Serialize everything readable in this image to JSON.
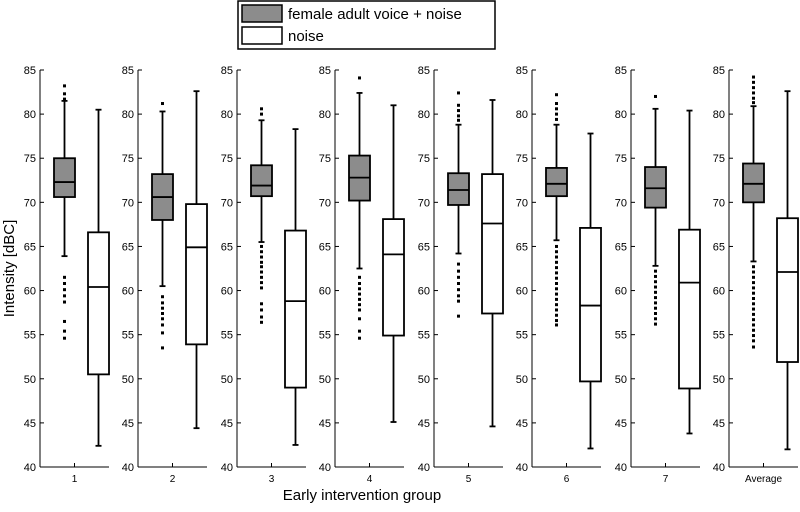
{
  "chart_data": {
    "type": "box",
    "ylabel": "Intensity [dBC]",
    "xlabel": "Early intervention group",
    "ylim": [
      40,
      85
    ],
    "yticks": [
      40,
      45,
      50,
      55,
      60,
      65,
      70,
      75,
      80,
      85
    ],
    "legend": {
      "placement": "top-center",
      "entries": [
        "female adult voice + noise",
        "noise"
      ]
    },
    "colors": {
      "female adult voice + noise": "#8c8c8c",
      "noise": "#ffffff",
      "line": "#000000"
    },
    "groups": [
      {
        "label": "1",
        "boxes": [
          {
            "series": "female adult voice + noise",
            "whisker_low": 63.9,
            "q1": 70.6,
            "median": 72.3,
            "q3": 75.0,
            "whisker_high": 81.5,
            "outliers": [
              83.2,
              82.3,
              81.7,
              61.5,
              60.8,
              60.1,
              59.4,
              58.7,
              56.5,
              55.4,
              54.6
            ]
          },
          {
            "series": "noise",
            "whisker_low": 42.4,
            "q1": 50.5,
            "median": 60.4,
            "q3": 66.6,
            "whisker_high": 80.5,
            "outliers": []
          }
        ]
      },
      {
        "label": "2",
        "boxes": [
          {
            "series": "female adult voice + noise",
            "whisker_low": 60.5,
            "q1": 68.0,
            "median": 70.6,
            "q3": 73.2,
            "whisker_high": 80.3,
            "outliers": [
              81.2,
              59.3,
              58.6,
              58.0,
              57.4,
              56.8,
              56.1,
              55.2,
              53.5
            ]
          },
          {
            "series": "noise",
            "whisker_low": 44.4,
            "q1": 53.9,
            "median": 64.9,
            "q3": 69.8,
            "whisker_high": 82.6,
            "outliers": []
          }
        ]
      },
      {
        "label": "3",
        "boxes": [
          {
            "series": "female adult voice + noise",
            "whisker_low": 65.5,
            "q1": 70.7,
            "median": 71.9,
            "q3": 74.2,
            "whisker_high": 79.3,
            "outliers": [
              80.6,
              80.0,
              65.0,
              64.4,
              63.8,
              63.2,
              62.7,
              62.1,
              61.5,
              60.9,
              60.3,
              58.5,
              57.8,
              57.0,
              56.4
            ]
          },
          {
            "series": "noise",
            "whisker_low": 42.5,
            "q1": 49.0,
            "median": 58.8,
            "q3": 66.8,
            "whisker_high": 78.3,
            "outliers": []
          }
        ]
      },
      {
        "label": "4",
        "boxes": [
          {
            "series": "female adult voice + noise",
            "whisker_low": 62.5,
            "q1": 70.2,
            "median": 72.8,
            "q3": 75.3,
            "whisker_high": 82.4,
            "outliers": [
              84.1,
              61.5,
              60.8,
              60.2,
              59.6,
              59.0,
              58.4,
              57.8,
              56.8,
              55.4,
              54.6
            ]
          },
          {
            "series": "noise",
            "whisker_low": 45.1,
            "q1": 54.9,
            "median": 64.1,
            "q3": 68.1,
            "whisker_high": 81.0,
            "outliers": []
          }
        ]
      },
      {
        "label": "5",
        "boxes": [
          {
            "series": "female adult voice + noise",
            "whisker_low": 64.2,
            "q1": 69.7,
            "median": 71.4,
            "q3": 73.3,
            "whisker_high": 78.8,
            "outliers": [
              82.4,
              81.0,
              80.4,
              79.8,
              79.3,
              63.0,
              62.2,
              61.5,
              60.8,
              60.1,
              59.4,
              58.8,
              57.1
            ]
          },
          {
            "series": "noise",
            "whisker_low": 44.6,
            "q1": 57.4,
            "median": 67.6,
            "q3": 73.2,
            "whisker_high": 81.6,
            "outliers": []
          }
        ]
      },
      {
        "label": "6",
        "boxes": [
          {
            "series": "female adult voice + noise",
            "whisker_low": 65.7,
            "q1": 70.7,
            "median": 72.1,
            "q3": 73.9,
            "whisker_high": 78.8,
            "outliers": [
              82.2,
              81.2,
              80.6,
              80.0,
              79.4,
              65.0,
              64.4,
              63.8,
              63.2,
              62.6,
              62.0,
              61.4,
              60.8,
              60.2,
              59.6,
              59.0,
              58.4,
              57.8,
              57.2,
              56.6,
              56.1
            ]
          },
          {
            "series": "noise",
            "whisker_low": 42.1,
            "q1": 49.7,
            "median": 58.3,
            "q3": 67.1,
            "whisker_high": 77.8,
            "outliers": []
          }
        ]
      },
      {
        "label": "7",
        "boxes": [
          {
            "series": "female adult voice + noise",
            "whisker_low": 62.8,
            "q1": 69.4,
            "median": 71.6,
            "q3": 74.0,
            "whisker_high": 80.6,
            "outliers": [
              82.0,
              62.2,
              61.6,
              61.0,
              60.4,
              59.8,
              59.2,
              58.6,
              58.0,
              57.4,
              56.8,
              56.2
            ]
          },
          {
            "series": "noise",
            "whisker_low": 43.8,
            "q1": 48.9,
            "median": 60.9,
            "q3": 66.9,
            "whisker_high": 80.4,
            "outliers": []
          }
        ]
      },
      {
        "label": "Average",
        "boxes": [
          {
            "series": "female adult voice + noise",
            "whisker_low": 63.3,
            "q1": 70.0,
            "median": 72.1,
            "q3": 74.4,
            "whisker_high": 80.9,
            "outliers": [
              84.2,
              83.6,
              83.0,
              82.4,
              81.8,
              81.3,
              62.7,
              62.1,
              61.5,
              60.9,
              60.3,
              59.7,
              59.1,
              58.5,
              57.9,
              57.3,
              56.7,
              56.1,
              55.5,
              54.9,
              54.3,
              53.6
            ]
          },
          {
            "series": "noise",
            "whisker_low": 42.0,
            "q1": 51.9,
            "median": 62.1,
            "q3": 68.2,
            "whisker_high": 82.6,
            "outliers": []
          }
        ]
      }
    ]
  }
}
